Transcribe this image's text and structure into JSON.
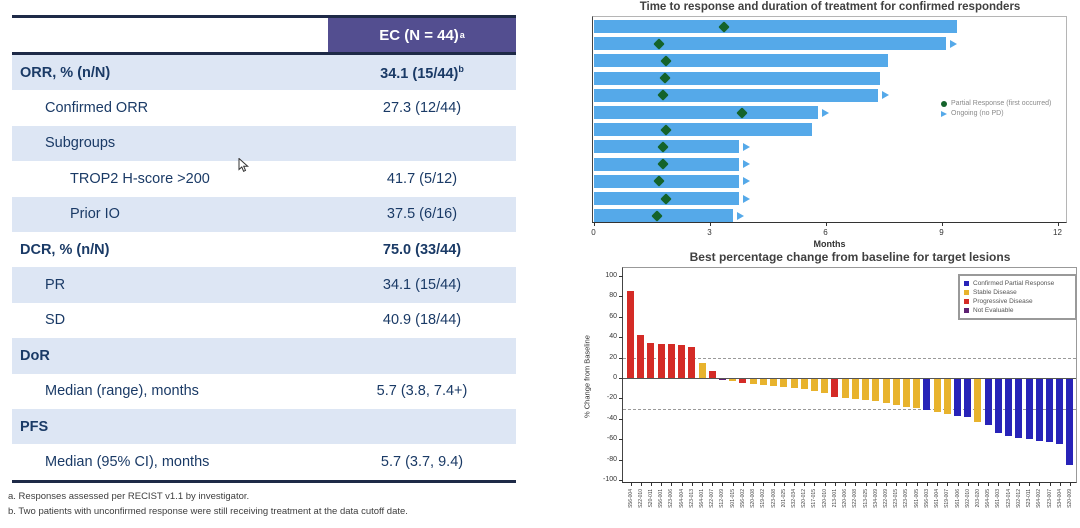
{
  "table": {
    "header": {
      "label": "EC (N = 44)",
      "sup": "a"
    },
    "rows": [
      {
        "label": "ORR, % (n/N)",
        "value": "34.1 (15/44)",
        "sup": "b",
        "bold": true,
        "indent": 0,
        "shaded": true
      },
      {
        "label": "Confirmed ORR",
        "value": "27.3 (12/44)",
        "sup": "",
        "bold": false,
        "indent": 1,
        "shaded": false
      },
      {
        "label": "Subgroups",
        "value": "",
        "sup": "",
        "bold": false,
        "indent": 1,
        "shaded": true
      },
      {
        "label": "TROP2 H-score >200",
        "value": "41.7 (5/12)",
        "sup": "",
        "bold": false,
        "indent": 2,
        "shaded": false
      },
      {
        "label": "Prior IO",
        "value": "37.5 (6/16)",
        "sup": "",
        "bold": false,
        "indent": 2,
        "shaded": true
      },
      {
        "label": "DCR, % (n/N)",
        "value": "75.0 (33/44)",
        "sup": "",
        "bold": true,
        "indent": 0,
        "shaded": false
      },
      {
        "label": "PR",
        "value": "34.1 (15/44)",
        "sup": "",
        "bold": false,
        "indent": 1,
        "shaded": true
      },
      {
        "label": "SD",
        "value": "40.9 (18/44)",
        "sup": "",
        "bold": false,
        "indent": 1,
        "shaded": false
      },
      {
        "label": "DoR",
        "value": "",
        "sup": "",
        "bold": true,
        "indent": 0,
        "shaded": true
      },
      {
        "label": "Median (range), months",
        "value": "5.7 (3.8, 7.4+)",
        "sup": "",
        "bold": false,
        "indent": 1,
        "shaded": false
      },
      {
        "label": "PFS",
        "value": "",
        "sup": "",
        "bold": true,
        "indent": 0,
        "shaded": true
      },
      {
        "label": "Median (95% CI), months",
        "value": "5.7 (3.7, 9.4)",
        "sup": "",
        "bold": false,
        "indent": 1,
        "shaded": false
      }
    ],
    "footnotes": [
      "a. Responses assessed per RECIST v1.1 by investigator.",
      "b. Two patients with unconfirmed response were still receiving treatment at the data cutoff date."
    ]
  },
  "chart_data": [
    {
      "type": "bar",
      "subtype": "swimmer",
      "title": "Time to response and duration of treatment for confirmed responders",
      "xlabel": "Months",
      "xlim": [
        0,
        12
      ],
      "xticks": [
        0,
        3,
        6,
        9,
        12
      ],
      "bar_color": "#55A9E9",
      "series": [
        {
          "duration_months": 9.4,
          "first_response_months": 3.4,
          "ongoing": false
        },
        {
          "duration_months": 9.1,
          "first_response_months": 1.7,
          "ongoing": true
        },
        {
          "duration_months": 7.6,
          "first_response_months": 1.9,
          "ongoing": false
        },
        {
          "duration_months": 7.4,
          "first_response_months": 1.85,
          "ongoing": false
        },
        {
          "duration_months": 7.35,
          "first_response_months": 1.8,
          "ongoing": true
        },
        {
          "duration_months": 5.8,
          "first_response_months": 3.85,
          "ongoing": true
        },
        {
          "duration_months": 5.65,
          "first_response_months": 1.9,
          "ongoing": false
        },
        {
          "duration_months": 3.75,
          "first_response_months": 1.8,
          "ongoing": true
        },
        {
          "duration_months": 3.75,
          "first_response_months": 1.8,
          "ongoing": true
        },
        {
          "duration_months": 3.75,
          "first_response_months": 1.7,
          "ongoing": true
        },
        {
          "duration_months": 3.75,
          "first_response_months": 1.9,
          "ongoing": true
        },
        {
          "duration_months": 3.6,
          "first_response_months": 1.65,
          "ongoing": true
        }
      ],
      "legend": [
        {
          "marker": "circle",
          "color": "#14632B",
          "label": "Partial Response (first occurred)"
        },
        {
          "marker": "triangle",
          "color": "#55A9E9",
          "label": "Ongoing (no PD)"
        }
      ]
    },
    {
      "type": "bar",
      "subtype": "waterfall",
      "title": "Best percentage change from baseline for target lesions",
      "ylabel": "% Change from Baseline",
      "ylim": [
        -100,
        100
      ],
      "yticks": [
        100,
        80,
        60,
        40,
        20,
        0,
        -20,
        -40,
        -60,
        -80,
        -100
      ],
      "reference_lines": [
        20,
        -30
      ],
      "colors": {
        "PR": "#2823B8",
        "SD": "#E8B32D",
        "PD": "#D42B26",
        "NE": "#5E2172"
      },
      "categories": [
        "S56-004",
        "S22-010",
        "S20-011",
        "S56-001",
        "S23-006",
        "S64-004",
        "S23-013",
        "S64-001",
        "S22-007",
        "S12-009",
        "S01-015",
        "S56-002",
        "S20-008",
        "S19-002",
        "S23-008",
        "201-025",
        "S32-034",
        "S20-012",
        "S17-015",
        "S20-010",
        "213-001",
        "S20-006",
        "S22-008",
        "S13-025",
        "S34-009",
        "S22-009",
        "S23-015",
        "S23-005",
        "S61-005",
        "S56-003",
        "S61-004",
        "S19-007",
        "S61-006",
        "S02-010",
        "203-020",
        "S64-005",
        "S61-003",
        "S23-014",
        "S02-012",
        "S23-011",
        "S64-002",
        "S23-007",
        "S34-004",
        "S20-009"
      ],
      "values": [
        85,
        42,
        34,
        33,
        33,
        32,
        30,
        15,
        7,
        -1,
        -2,
        -4,
        -5,
        -6,
        -7,
        -8,
        -9,
        -10,
        -12,
        -14,
        -18,
        -19,
        -20,
        -21,
        -22,
        -24,
        -25,
        -27,
        -28,
        -30,
        -32,
        -34,
        -36,
        -37,
        -42,
        -45,
        -53,
        -56,
        -58,
        -59,
        -61,
        -62,
        -64,
        -84
      ],
      "status": [
        "PD",
        "PD",
        "PD",
        "PD",
        "PD",
        "PD",
        "PD",
        "SD",
        "PD",
        "NE",
        "SD",
        "PD",
        "SD",
        "SD",
        "SD",
        "SD",
        "SD",
        "SD",
        "SD",
        "SD",
        "PD",
        "SD",
        "SD",
        "SD",
        "SD",
        "SD",
        "SD",
        "SD",
        "SD",
        "PR",
        "SD",
        "SD",
        "PR",
        "PR",
        "SD",
        "PR",
        "PR",
        "PR",
        "PR",
        "PR",
        "PR",
        "PR",
        "PR",
        "PR"
      ],
      "legend": [
        {
          "key": "PR",
          "label": "Confirmed Partial Response"
        },
        {
          "key": "SD",
          "label": "Stable Disease"
        },
        {
          "key": "PD",
          "label": "Progressive Disease"
        },
        {
          "key": "NE",
          "label": "Not Evaluable"
        }
      ]
    }
  ]
}
